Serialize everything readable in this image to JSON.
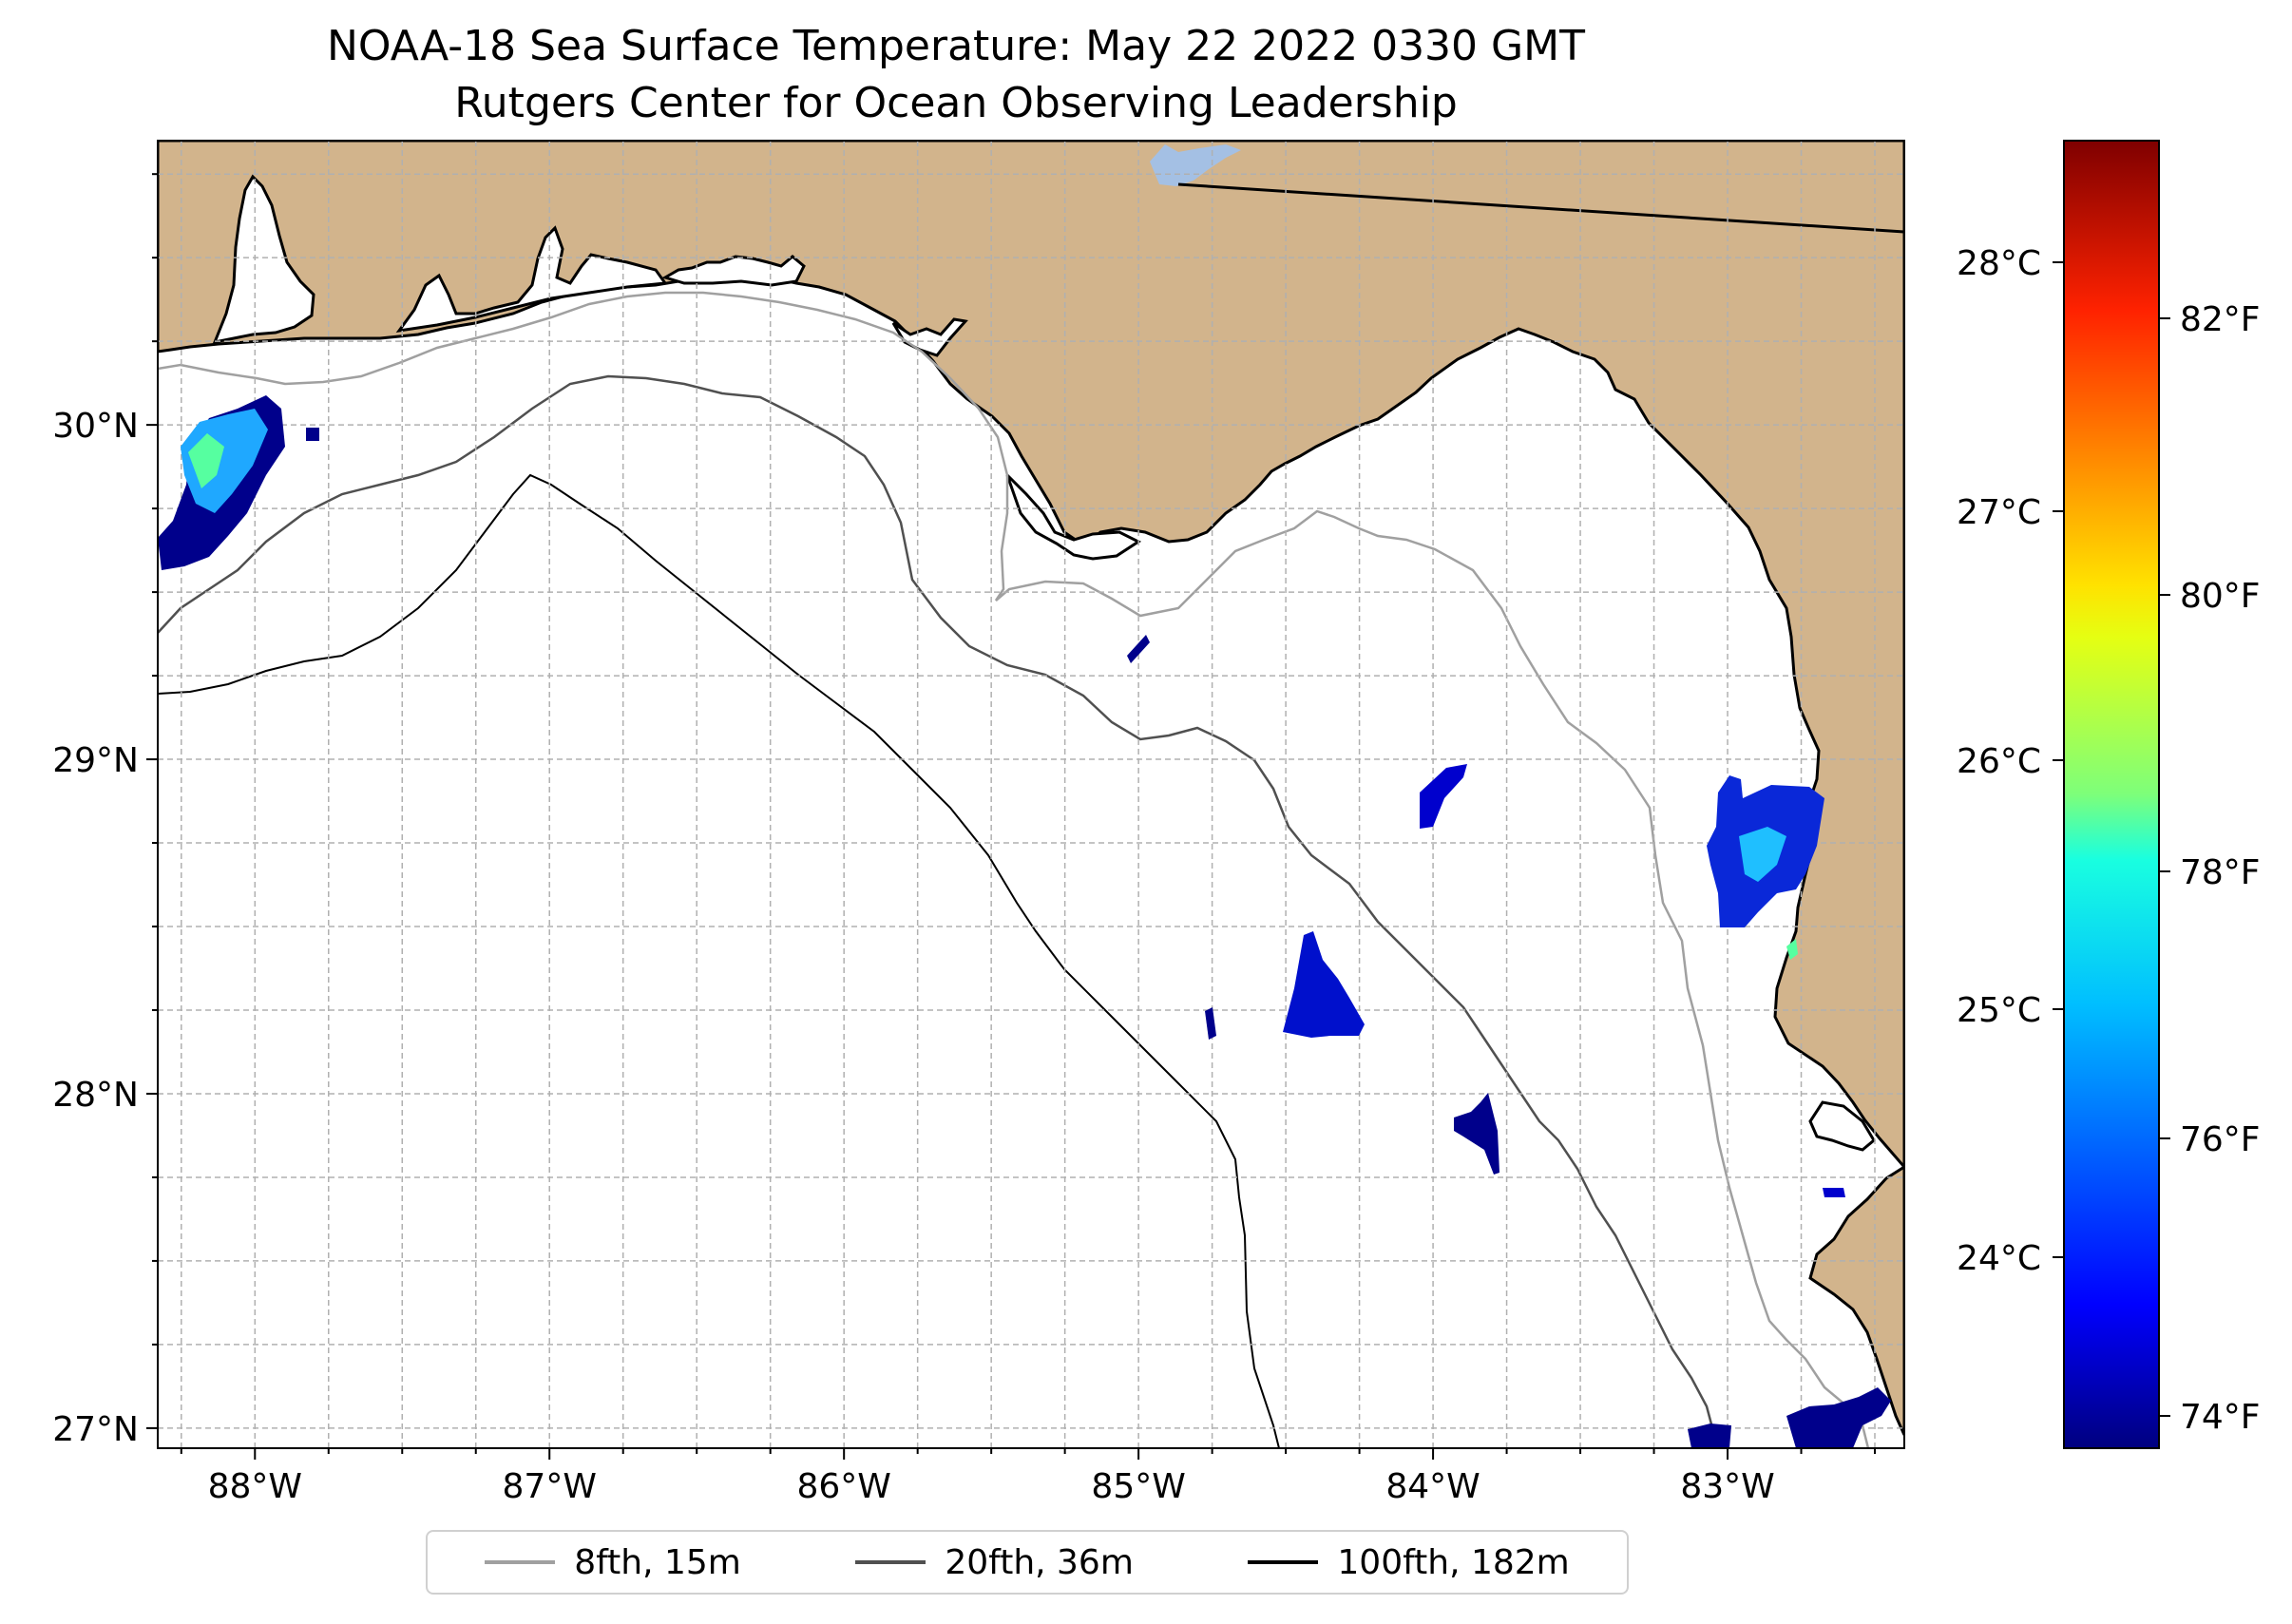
{
  "title": "NOAA-18 Sea Surface Temperature: May 22 2022 0330 GMT",
  "subtitle": "Rutgers Center for Ocean Observing Leadership",
  "map": {
    "lon_range": [
      -88.33,
      -82.4
    ],
    "lat_range": [
      26.94,
      30.85
    ],
    "lat_ticks": [
      {
        "value": 30,
        "label": "30°N"
      },
      {
        "value": 29,
        "label": "29°N"
      },
      {
        "value": 28,
        "label": "28°N"
      },
      {
        "value": 27,
        "label": "27°N"
      }
    ],
    "lon_ticks": [
      {
        "value": -88,
        "label": "88°W"
      },
      {
        "value": -87,
        "label": "87°W"
      },
      {
        "value": -86,
        "label": "86°W"
      },
      {
        "value": -85,
        "label": "85°W"
      },
      {
        "value": -84,
        "label": "84°W"
      },
      {
        "value": -83,
        "label": "83°W"
      }
    ],
    "colors": {
      "land": "#d2b48c",
      "ocean": "#ffffff",
      "lake": "#a4c0e4",
      "grid": "#b0b0b0"
    }
  },
  "colorbar": {
    "colormap": "jet",
    "celsius_ticks": [
      "28°C",
      "27°C",
      "26°C",
      "25°C",
      "24°C"
    ],
    "fahrenheit_ticks": [
      "82°F",
      "80°F",
      "78°F",
      "76°F",
      "74°F"
    ]
  },
  "legend": {
    "items": [
      {
        "label": "8fth, 15m",
        "color": "#a0a0a0",
        "width": 4
      },
      {
        "label": "20fth, 36m",
        "color": "#505050",
        "width": 4
      },
      {
        "label": "100fth, 182m",
        "color": "#000000",
        "width": 4
      }
    ]
  }
}
